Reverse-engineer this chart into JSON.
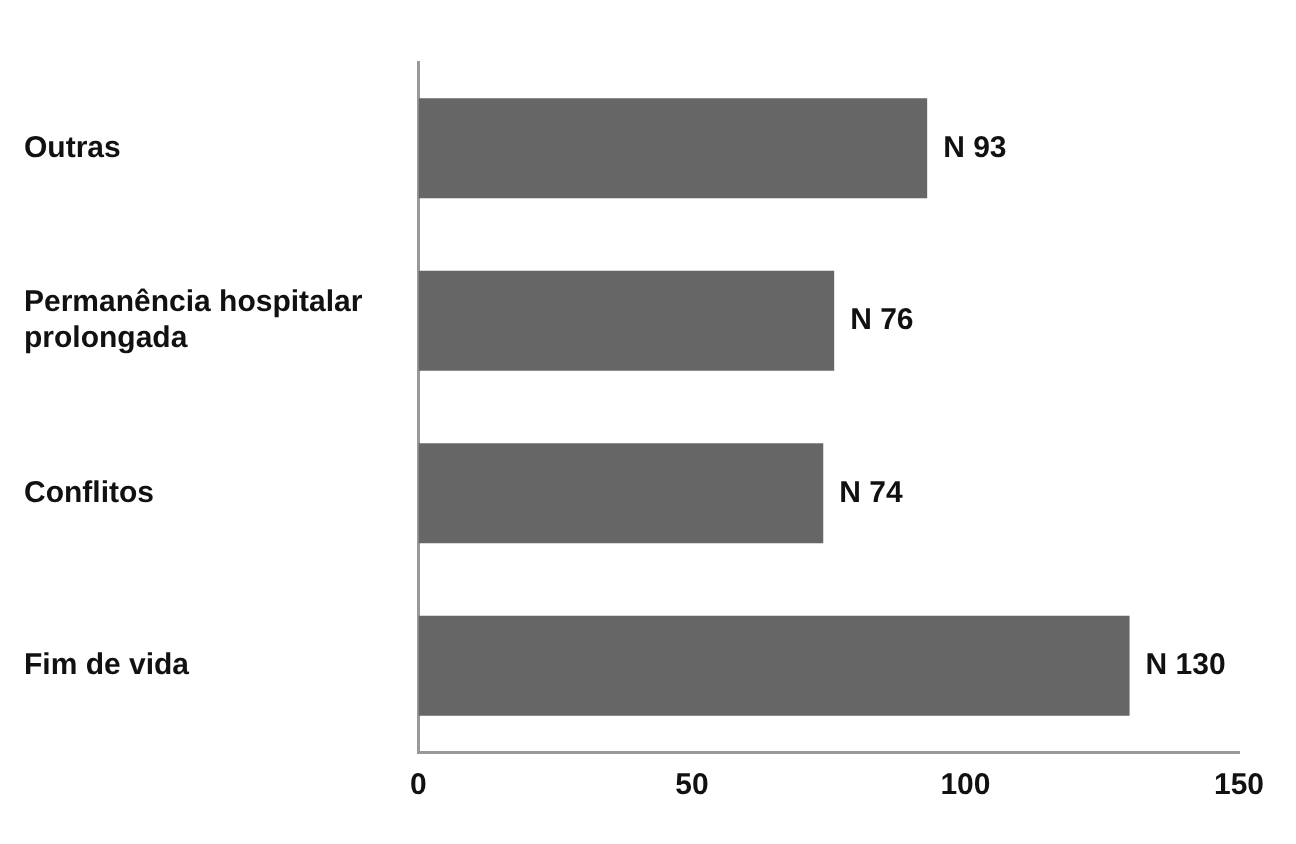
{
  "chart_data": {
    "type": "bar",
    "orientation": "horizontal",
    "categories": [
      "Outras",
      "Permanência hospitalar prolongada",
      "Conflitos",
      "Fim de vida"
    ],
    "values": [
      93,
      76,
      74,
      130
    ],
    "value_labels": [
      "N 93",
      "N 76",
      "N 74",
      "N 130"
    ],
    "color": "#666666",
    "xlim": [
      0,
      150
    ],
    "xticks": [
      0,
      50,
      100,
      150
    ],
    "grid": false,
    "legend": false
  }
}
